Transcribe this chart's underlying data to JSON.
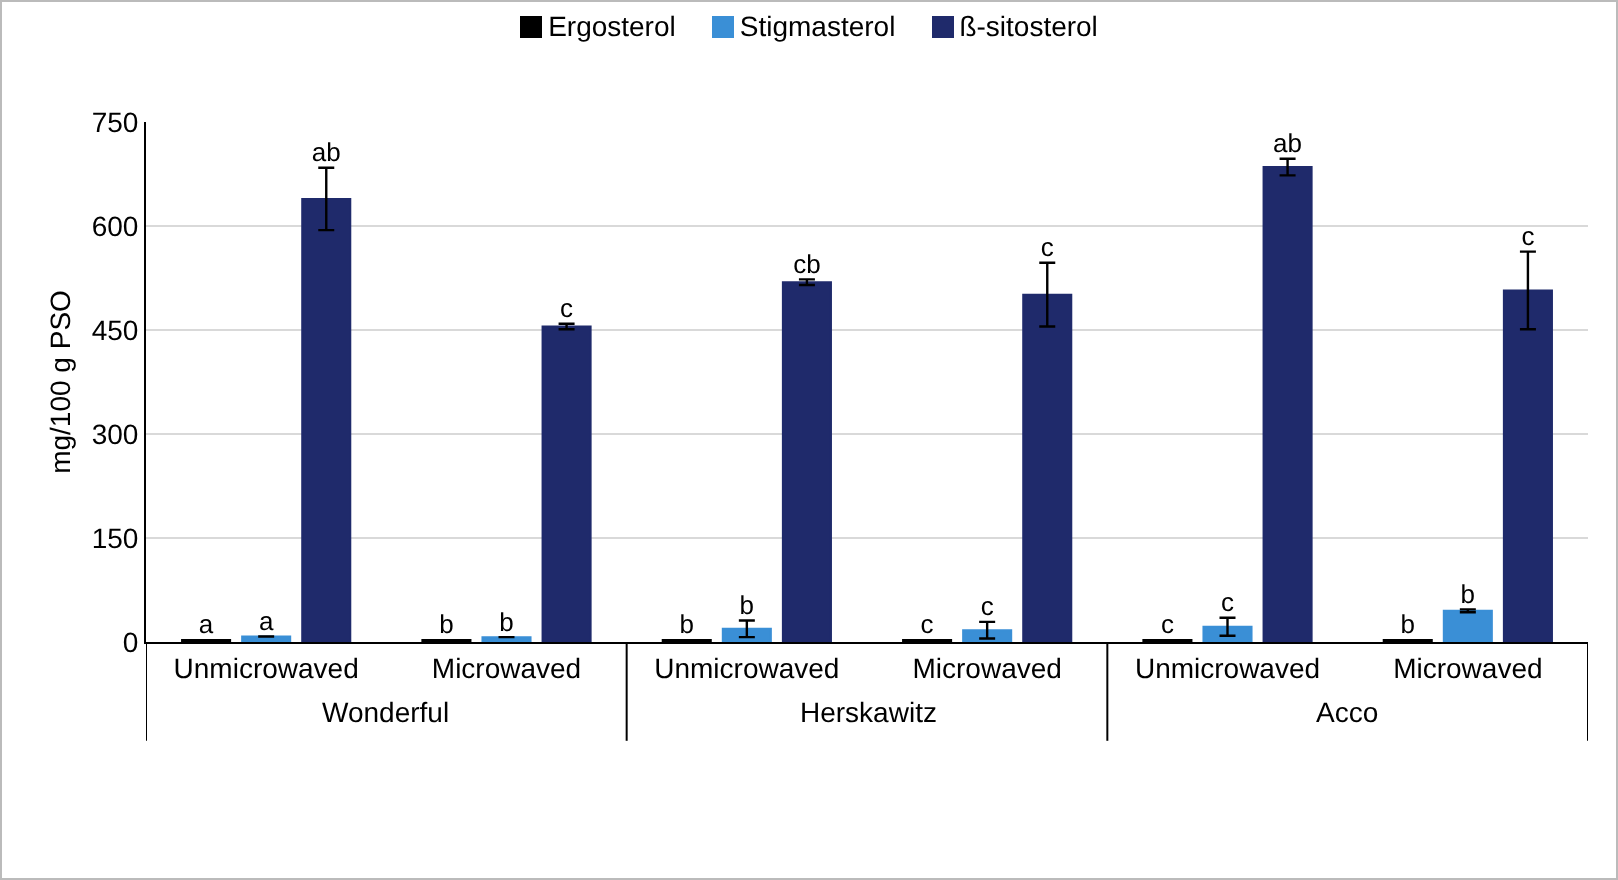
{
  "chart_data": {
    "type": "bar",
    "ylabel": "mg/100 g PSO",
    "categories": [
      "Unmicrowaved",
      "Microwaved",
      "Unmicrowaved",
      "Microwaved",
      "Unmicrowaved",
      "Microwaved"
    ],
    "annotations": [
      "Wonderful",
      "Herskawitz",
      "Acco"
    ],
    "series": [
      {
        "name": "Ergosterol",
        "color": "#000000",
        "values": [
          3,
          3,
          3,
          3,
          3,
          3
        ],
        "value_labels": [
          "a",
          "b",
          "b",
          "c",
          "c",
          "b"
        ]
      },
      {
        "name": "Stigmasterol",
        "color": "#3a8fd6",
        "values": [
          8,
          7,
          19,
          17,
          22,
          45
        ],
        "errors": [
          null,
          null,
          12,
          12,
          13,
          2
        ],
        "value_labels": [
          "a",
          "b",
          "b",
          "c",
          "c",
          "b"
        ]
      },
      {
        "name": "ß-sitosterol",
        "color": "#1f2a6b",
        "values": [
          639,
          455,
          519,
          501,
          685,
          507
        ],
        "errors": [
          45,
          4,
          4,
          46,
          12,
          56
        ],
        "value_labels": [
          "ab",
          "c",
          "cb",
          "c",
          "ab",
          "c"
        ]
      }
    ],
    "ylim": [
      0,
      750
    ],
    "yticks": [
      0,
      150,
      300,
      450,
      600,
      750
    ],
    "grid": "y",
    "legend": "top"
  }
}
